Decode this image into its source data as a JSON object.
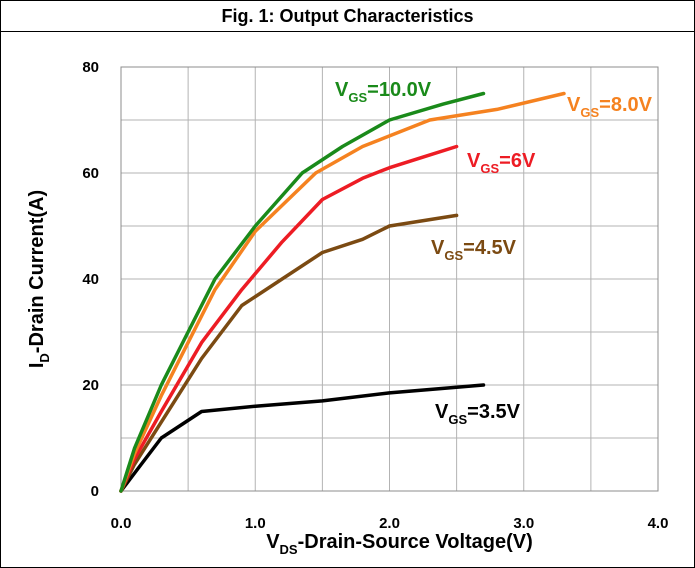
{
  "chart_data": {
    "type": "line",
    "title": "Fig. 1: Output Characteristics",
    "xlabel": {
      "main": "V",
      "sub": "DS",
      "rest": "-Drain-Source Voltage(V)"
    },
    "ylabel": {
      "main": "I",
      "sub": "D",
      "rest": "-Drain Current(A)"
    },
    "xlim": [
      0,
      4
    ],
    "ylim": [
      0,
      80
    ],
    "x_ticks": [
      "0.0",
      "1.0",
      "2.0",
      "3.0",
      "4.0"
    ],
    "y_ticks": [
      "0",
      "20",
      "40",
      "60",
      "80"
    ],
    "grid": true,
    "series": [
      {
        "name": {
          "main": "V",
          "sub": "GS",
          "rest": "=10.0V"
        },
        "color": "#1a8a1a",
        "x": [
          0.0,
          0.1,
          0.3,
          0.5,
          0.7,
          1.0,
          1.35,
          1.65,
          2.0,
          2.4,
          2.7
        ],
        "y": [
          0,
          8,
          20,
          30,
          40,
          50,
          60,
          65,
          70,
          73,
          75
        ]
      },
      {
        "name": {
          "main": "V",
          "sub": "GS",
          "rest": "=8.0V"
        },
        "color": "#f58220",
        "x": [
          0.0,
          0.1,
          0.3,
          0.5,
          0.7,
          1.0,
          1.45,
          1.8,
          2.3,
          2.8,
          3.3
        ],
        "y": [
          0,
          7,
          18,
          28,
          38,
          49,
          60,
          65,
          70,
          72,
          75
        ]
      },
      {
        "name": {
          "main": "V",
          "sub": "GS",
          "rest": "=6V"
        },
        "color": "#ed1c24",
        "x": [
          0.0,
          0.1,
          0.3,
          0.6,
          0.9,
          1.2,
          1.5,
          1.8,
          2.0,
          2.25,
          2.5
        ],
        "y": [
          0,
          6,
          15,
          28,
          38,
          47,
          55,
          59,
          61,
          63,
          65
        ]
      },
      {
        "name": {
          "main": "V",
          "sub": "GS",
          "rest": "=4.5V"
        },
        "color": "#7b4a12",
        "x": [
          0.0,
          0.1,
          0.3,
          0.6,
          0.9,
          1.2,
          1.5,
          1.8,
          2.0,
          2.5
        ],
        "y": [
          0,
          5,
          13,
          25,
          35,
          40,
          45,
          47.5,
          50,
          52
        ]
      },
      {
        "name": {
          "main": "V",
          "sub": "GS",
          "rest": "=3.5V"
        },
        "color": "#000000",
        "x": [
          0.0,
          0.15,
          0.3,
          0.6,
          1.0,
          1.5,
          2.0,
          2.7
        ],
        "y": [
          0,
          5,
          10,
          15,
          16,
          17,
          18.5,
          20
        ]
      }
    ]
  }
}
